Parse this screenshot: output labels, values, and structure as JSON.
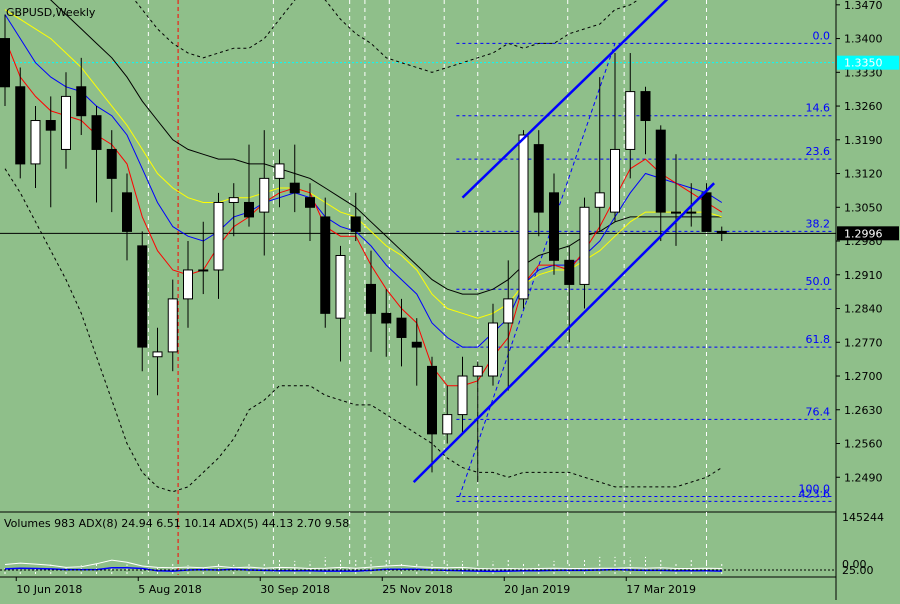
{
  "header": {
    "symbol_label": "GBPUSD,Weekly"
  },
  "colors": {
    "background": "#8fbf8a",
    "bull_candle": "#ffffff",
    "bear_candle": "#000000",
    "ema_fast": "#ff0000",
    "ema_mid": "#0000ff",
    "ema_slow": "#ffff00",
    "sma_long": "#000000",
    "trendline": "#0000ff",
    "fibo": "#0000ff",
    "cyan_level": "#00ffff",
    "volume": "#ffffff",
    "adx": "#0000ff"
  },
  "chart_data": {
    "type": "candlestick",
    "symbol": "GBPUSD",
    "timeframe": "Weekly",
    "ylim": [
      1.242,
      1.348
    ],
    "y_ticks": [
      "1.3470",
      "1.3400",
      "1.3330",
      "1.3260",
      "1.3190",
      "1.3120",
      "1.3050",
      "1.2980",
      "1.2910",
      "1.2840",
      "1.2770",
      "1.2700",
      "1.2630",
      "1.2560",
      "1.2490"
    ],
    "x_labels": [
      {
        "label": "10 Jun 2018",
        "index": 1
      },
      {
        "label": "5 Aug 2018",
        "index": 9
      },
      {
        "label": "30 Sep 2018",
        "index": 17
      },
      {
        "label": "25 Nov 2018",
        "index": 25
      },
      {
        "label": "20 Jan 2019",
        "index": 33
      },
      {
        "label": "17 Mar 2019",
        "index": 41
      }
    ],
    "current_price": "1.2996",
    "cyan_price_tag": "1.3350",
    "candles": [
      {
        "o": 1.34,
        "h": 1.345,
        "l": 1.326,
        "c": 1.33
      },
      {
        "o": 1.33,
        "h": 1.334,
        "l": 1.311,
        "c": 1.314
      },
      {
        "o": 1.314,
        "h": 1.326,
        "l": 1.309,
        "c": 1.323
      },
      {
        "o": 1.323,
        "h": 1.328,
        "l": 1.305,
        "c": 1.321
      },
      {
        "o": 1.317,
        "h": 1.333,
        "l": 1.313,
        "c": 1.328
      },
      {
        "o": 1.33,
        "h": 1.336,
        "l": 1.32,
        "c": 1.324
      },
      {
        "o": 1.324,
        "h": 1.326,
        "l": 1.306,
        "c": 1.317
      },
      {
        "o": 1.317,
        "h": 1.321,
        "l": 1.304,
        "c": 1.311
      },
      {
        "o": 1.308,
        "h": 1.312,
        "l": 1.294,
        "c": 1.3
      },
      {
        "o": 1.297,
        "h": 1.3,
        "l": 1.271,
        "c": 1.276
      },
      {
        "o": 1.274,
        "h": 1.28,
        "l": 1.266,
        "c": 1.275
      },
      {
        "o": 1.275,
        "h": 1.29,
        "l": 1.271,
        "c": 1.286
      },
      {
        "o": 1.286,
        "h": 1.298,
        "l": 1.28,
        "c": 1.292
      },
      {
        "o": 1.292,
        "h": 1.302,
        "l": 1.287,
        "c": 1.292
      },
      {
        "o": 1.292,
        "h": 1.308,
        "l": 1.286,
        "c": 1.306
      },
      {
        "o": 1.306,
        "h": 1.31,
        "l": 1.299,
        "c": 1.307
      },
      {
        "o": 1.306,
        "h": 1.318,
        "l": 1.301,
        "c": 1.303
      },
      {
        "o": 1.304,
        "h": 1.321,
        "l": 1.295,
        "c": 1.311
      },
      {
        "o": 1.311,
        "h": 1.317,
        "l": 1.305,
        "c": 1.314
      },
      {
        "o": 1.31,
        "h": 1.318,
        "l": 1.304,
        "c": 1.308
      },
      {
        "o": 1.307,
        "h": 1.31,
        "l": 1.298,
        "c": 1.305
      },
      {
        "o": 1.303,
        "h": 1.307,
        "l": 1.28,
        "c": 1.283
      },
      {
        "o": 1.282,
        "h": 1.297,
        "l": 1.273,
        "c": 1.295
      },
      {
        "o": 1.303,
        "h": 1.308,
        "l": 1.298,
        "c": 1.3
      },
      {
        "o": 1.289,
        "h": 1.296,
        "l": 1.275,
        "c": 1.283
      },
      {
        "o": 1.283,
        "h": 1.288,
        "l": 1.274,
        "c": 1.281
      },
      {
        "o": 1.282,
        "h": 1.286,
        "l": 1.272,
        "c": 1.278
      },
      {
        "o": 1.277,
        "h": 1.282,
        "l": 1.268,
        "c": 1.276
      },
      {
        "o": 1.272,
        "h": 1.274,
        "l": 1.25,
        "c": 1.258
      },
      {
        "o": 1.258,
        "h": 1.268,
        "l": 1.256,
        "c": 1.262
      },
      {
        "o": 1.262,
        "h": 1.274,
        "l": 1.258,
        "c": 1.27
      },
      {
        "o": 1.27,
        "h": 1.273,
        "l": 1.248,
        "c": 1.272
      },
      {
        "o": 1.27,
        "h": 1.285,
        "l": 1.268,
        "c": 1.281
      },
      {
        "o": 1.281,
        "h": 1.294,
        "l": 1.267,
        "c": 1.286
      },
      {
        "o": 1.286,
        "h": 1.321,
        "l": 1.284,
        "c": 1.32
      },
      {
        "o": 1.318,
        "h": 1.321,
        "l": 1.299,
        "c": 1.304
      },
      {
        "o": 1.308,
        "h": 1.312,
        "l": 1.291,
        "c": 1.294
      },
      {
        "o": 1.294,
        "h": 1.297,
        "l": 1.277,
        "c": 1.289
      },
      {
        "o": 1.289,
        "h": 1.307,
        "l": 1.284,
        "c": 1.305
      },
      {
        "o": 1.305,
        "h": 1.332,
        "l": 1.3,
        "c": 1.308
      },
      {
        "o": 1.304,
        "h": 1.337,
        "l": 1.302,
        "c": 1.317
      },
      {
        "o": 1.317,
        "h": 1.337,
        "l": 1.311,
        "c": 1.329
      },
      {
        "o": 1.329,
        "h": 1.33,
        "l": 1.316,
        "c": 1.323
      },
      {
        "o": 1.321,
        "h": 1.322,
        "l": 1.298,
        "c": 1.304
      },
      {
        "o": 1.304,
        "h": 1.316,
        "l": 1.297,
        "c": 1.304
      },
      {
        "o": 1.304,
        "h": 1.31,
        "l": 1.301,
        "c": 1.304
      },
      {
        "o": 1.308,
        "h": 1.31,
        "l": 1.3,
        "c": 1.3
      },
      {
        "o": 1.3,
        "h": 1.301,
        "l": 1.298,
        "c": 1.2996
      }
    ],
    "ema_fast": [
      1.34,
      1.332,
      1.328,
      1.325,
      1.324,
      1.323,
      1.32,
      1.318,
      1.314,
      1.303,
      1.296,
      1.292,
      1.291,
      1.292,
      1.297,
      1.301,
      1.303,
      1.306,
      1.308,
      1.309,
      1.308,
      1.301,
      1.299,
      1.299,
      1.293,
      1.288,
      1.284,
      1.281,
      1.272,
      1.268,
      1.268,
      1.269,
      1.274,
      1.278,
      1.289,
      1.293,
      1.293,
      1.292,
      1.296,
      1.301,
      1.307,
      1.313,
      1.315,
      1.312,
      1.31,
      1.308,
      1.306,
      1.304
    ],
    "ema_mid": [
      1.345,
      1.34,
      1.335,
      1.332,
      1.33,
      1.329,
      1.326,
      1.324,
      1.32,
      1.313,
      1.306,
      1.301,
      1.299,
      1.298,
      1.3,
      1.303,
      1.304,
      1.306,
      1.307,
      1.308,
      1.307,
      1.303,
      1.301,
      1.3,
      1.297,
      1.293,
      1.29,
      1.287,
      1.281,
      1.278,
      1.276,
      1.276,
      1.279,
      1.282,
      1.289,
      1.292,
      1.293,
      1.293,
      1.295,
      1.298,
      1.303,
      1.308,
      1.312,
      1.311,
      1.31,
      1.309,
      1.308,
      1.306
    ],
    "ema_slow": [
      1.346,
      1.344,
      1.342,
      1.34,
      1.337,
      1.334,
      1.33,
      1.326,
      1.322,
      1.317,
      1.312,
      1.309,
      1.307,
      1.306,
      1.306,
      1.307,
      1.307,
      1.308,
      1.309,
      1.309,
      1.308,
      1.306,
      1.304,
      1.303,
      1.3,
      1.297,
      1.295,
      1.292,
      1.287,
      1.284,
      1.283,
      1.282,
      1.283,
      1.285,
      1.289,
      1.291,
      1.292,
      1.292,
      1.294,
      1.296,
      1.299,
      1.302,
      1.304,
      1.304,
      1.304,
      1.304,
      1.304,
      1.303
    ],
    "sma_long": [
      1.356,
      1.354,
      1.351,
      1.348,
      1.345,
      1.342,
      1.339,
      1.336,
      1.332,
      1.327,
      1.323,
      1.319,
      1.317,
      1.316,
      1.315,
      1.315,
      1.314,
      1.314,
      1.313,
      1.312,
      1.311,
      1.309,
      1.307,
      1.305,
      1.302,
      1.299,
      1.296,
      1.293,
      1.29,
      1.288,
      1.287,
      1.287,
      1.288,
      1.29,
      1.293,
      1.295,
      1.296,
      1.297,
      1.299,
      1.3,
      1.302,
      1.303,
      1.303,
      1.303,
      1.303,
      1.303,
      1.303,
      1.303
    ],
    "bb_upper": [
      1.37,
      1.369,
      1.368,
      1.367,
      1.364,
      1.361,
      1.358,
      1.354,
      1.35,
      1.346,
      1.342,
      1.339,
      1.337,
      1.336,
      1.337,
      1.338,
      1.338,
      1.34,
      1.344,
      1.348,
      1.35,
      1.348,
      1.344,
      1.341,
      1.339,
      1.336,
      1.335,
      1.334,
      1.333,
      1.334,
      1.335,
      1.336,
      1.337,
      1.339,
      1.338,
      1.339,
      1.339,
      1.341,
      1.342,
      1.343,
      1.346,
      1.347,
      1.349,
      1.35,
      1.35,
      1.35,
      1.35,
      1.349
    ],
    "bb_lower": [
      1.313,
      1.308,
      1.302,
      1.296,
      1.29,
      1.283,
      1.274,
      1.265,
      1.256,
      1.25,
      1.247,
      1.246,
      1.247,
      1.25,
      1.253,
      1.257,
      1.263,
      1.265,
      1.268,
      1.268,
      1.268,
      1.266,
      1.265,
      1.264,
      1.264,
      1.262,
      1.26,
      1.258,
      1.256,
      1.253,
      1.251,
      1.25,
      1.25,
      1.249,
      1.25,
      1.25,
      1.25,
      1.25,
      1.249,
      1.248,
      1.247,
      1.247,
      1.247,
      1.247,
      1.247,
      1.248,
      1.249,
      1.251
    ],
    "fibo_levels": [
      {
        "label": "0.0",
        "price": 1.339
      },
      {
        "label": "14.6",
        "price": 1.324
      },
      {
        "label": "23.6",
        "price": 1.315
      },
      {
        "label": "38.2",
        "price": 1.3
      },
      {
        "label": "50.0",
        "price": 1.288
      },
      {
        "label": "61.8",
        "price": 1.276
      },
      {
        "label": "76.4",
        "price": 1.261
      },
      {
        "label": "100.0",
        "price": 1.245
      },
      {
        "label": "423.6",
        "price": 1.244
      }
    ],
    "trend_channel": {
      "upper": [
        {
          "i": 30.0,
          "p": 1.307
        },
        {
          "i": 43.7,
          "p": 1.349
        }
      ],
      "lower": [
        {
          "i": 26.8,
          "p": 1.248
        },
        {
          "i": 46.5,
          "p": 1.31
        }
      ]
    },
    "volume_panel": {
      "label": "Volumes 983 ADX(8) 24.94 6.51 10.14 ADX(5) 44.13 2.70 9.58",
      "y_ticks": [
        "145244",
        "0.00",
        "25.00"
      ],
      "volume_scale": 145244
    },
    "volumes": [
      18000,
      22000,
      21000,
      26000,
      20000,
      24000,
      30000,
      19000,
      26000,
      23000,
      21000,
      32000,
      24000,
      22000,
      33000,
      25000,
      28000,
      30000,
      42000,
      36000,
      34000,
      46000,
      38000,
      40000,
      45000,
      38000,
      33000,
      31000,
      36000,
      34000,
      35000,
      30000,
      34000,
      40000,
      28000,
      31000,
      36000,
      28000,
      44000,
      47000,
      47000,
      45000,
      47000,
      43000,
      33000,
      41000,
      37000,
      30000
    ],
    "adx_volume_line": [
      26000,
      30000,
      27000,
      24000,
      18000,
      20000,
      28000,
      38000,
      32000,
      22000,
      18000,
      17000,
      19000,
      17000,
      21000,
      17000,
      19000,
      16000,
      18000,
      17000,
      15000,
      16000,
      18000,
      16000,
      19000,
      22000,
      24000,
      20000,
      18000,
      17000,
      18000,
      15000,
      14000,
      15000,
      14000,
      15000,
      16000,
      15000,
      15000,
      16000,
      16000,
      17000,
      16000,
      17000,
      15000,
      15000,
      16000,
      15000
    ],
    "adx_white_line": [
      14000,
      16000,
      15000,
      14000,
      12000,
      12000,
      12000,
      17000,
      17000,
      15000,
      9000,
      8000,
      11000,
      12000,
      11000,
      13000,
      11000,
      10000,
      9000,
      9000,
      9000,
      8000,
      8000,
      8000,
      10000,
      13000,
      13000,
      13000,
      11000,
      10000,
      9000,
      8000,
      7000,
      8000,
      9000,
      9000,
      10000,
      10000,
      10000,
      11000,
      12000,
      11000,
      10000,
      10000,
      9000,
      9000,
      9000,
      8000
    ]
  }
}
